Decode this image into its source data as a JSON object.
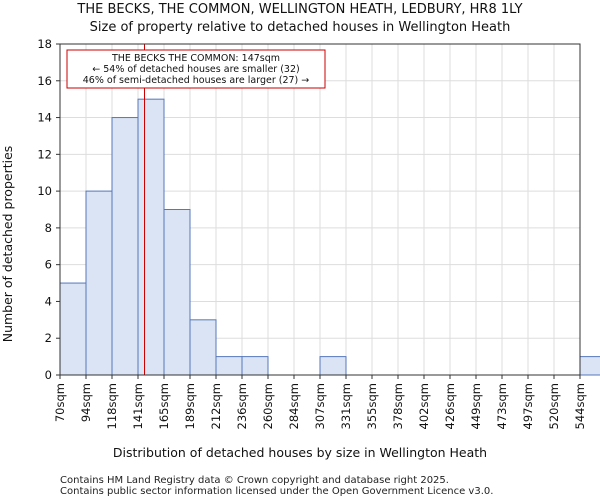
{
  "chart_data": {
    "type": "bar",
    "title": "THE BECKS, THE COMMON, WELLINGTON HEATH, LEDBURY, HR8 1LY",
    "subtitle": "Size of property relative to detached houses in Wellington Heath",
    "xlabel": "Distribution of detached houses by size in Wellington Heath",
    "ylabel": "Number of detached properties",
    "categories": [
      "70sqm",
      "94sqm",
      "118sqm",
      "141sqm",
      "165sqm",
      "189sqm",
      "212sqm",
      "236sqm",
      "260sqm",
      "284sqm",
      "307sqm",
      "331sqm",
      "355sqm",
      "378sqm",
      "402sqm",
      "426sqm",
      "449sqm",
      "473sqm",
      "497sqm",
      "520sqm",
      "544sqm"
    ],
    "values": [
      5,
      10,
      14,
      15,
      9,
      3,
      1,
      1,
      0,
      0,
      1,
      0,
      0,
      0,
      0,
      0,
      0,
      0,
      0,
      0,
      1
    ],
    "ylim": [
      0,
      18
    ],
    "yticks": [
      0,
      2,
      4,
      6,
      8,
      10,
      12,
      14,
      16,
      18
    ],
    "grid": true,
    "property_size_sqm": 147,
    "annotation": {
      "line1": "THE BECKS THE COMMON: 147sqm",
      "line2": "← 54% of detached houses are smaller (32)",
      "line3": "46% of semi-detached houses are larger (27) →"
    },
    "colors": {
      "bar_fill": "#dbe4f4",
      "bar_edge": "#5577bb",
      "marker": "#cc0000",
      "grid": "#dddddd"
    }
  },
  "footer": {
    "line1": "Contains HM Land Registry data © Crown copyright and database right 2025.",
    "line2": "Contains public sector information licensed under the Open Government Licence v3.0."
  }
}
